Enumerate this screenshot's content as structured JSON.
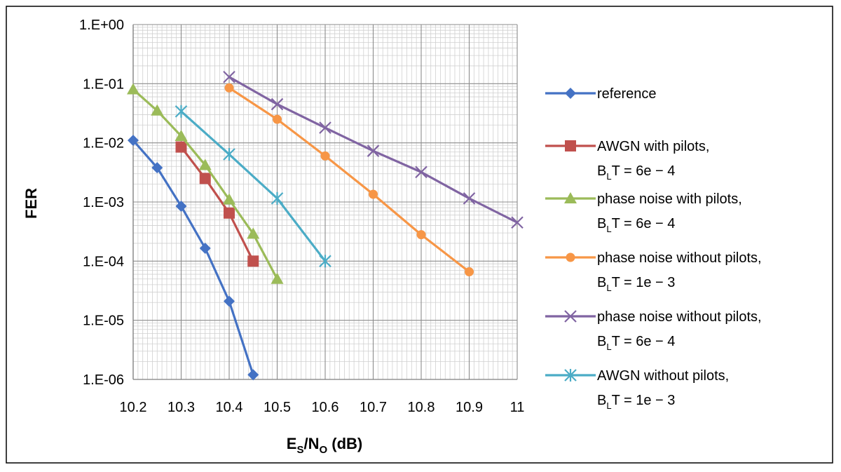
{
  "chart_data": {
    "type": "line",
    "xlabel": {
      "main": "E",
      "sub1": "S",
      "mid": "/N",
      "sub2": "O",
      "tail": " (dB)"
    },
    "ylabel": "FER",
    "x_scale": "linear",
    "y_scale": "log",
    "xlim": [
      10.2,
      11
    ],
    "ylim": [
      1e-06,
      1
    ],
    "x_ticks": [
      {
        "value": 10.2,
        "label": "10.2"
      },
      {
        "value": 10.3,
        "label": "10.3"
      },
      {
        "value": 10.4,
        "label": "10.4"
      },
      {
        "value": 10.5,
        "label": "10.5"
      },
      {
        "value": 10.6,
        "label": "10.6"
      },
      {
        "value": 10.7,
        "label": "10.7"
      },
      {
        "value": 10.8,
        "label": "10.8"
      },
      {
        "value": 10.9,
        "label": "10.9"
      },
      {
        "value": 11.0,
        "label": "11"
      }
    ],
    "y_ticks": [
      {
        "value": 1,
        "label": "1.E+00"
      },
      {
        "value": 0.1,
        "label": "1.E-01"
      },
      {
        "value": 0.01,
        "label": "1.E-02"
      },
      {
        "value": 0.001,
        "label": "1.E-03"
      },
      {
        "value": 0.0001,
        "label": "1.E-04"
      },
      {
        "value": 1e-05,
        "label": "1.E-05"
      },
      {
        "value": 1e-06,
        "label": "1.E-06"
      }
    ],
    "grid": true,
    "legend_position": "right",
    "series": [
      {
        "name": "reference",
        "name_line2": null,
        "color": "#4472C4",
        "marker": "diamond",
        "x": [
          10.2,
          10.25,
          10.3,
          10.35,
          10.4,
          10.45
        ],
        "y": [
          0.011,
          0.0038,
          0.00085,
          0.000165,
          2.1e-05,
          1.2e-06
        ]
      },
      {
        "name": "AWGN with pilots,",
        "name_line2": {
          "pre": "B",
          "sub": "L",
          "post": "T = 6e − 4"
        },
        "color": "#C0504D",
        "marker": "square",
        "x": [
          10.3,
          10.35,
          10.4,
          10.45
        ],
        "y": [
          0.0085,
          0.0025,
          0.00065,
          0.0001
        ]
      },
      {
        "name": "phase noise with pilots,",
        "name_line2": {
          "pre": "B",
          "sub": "L",
          "post": "T = 6e − 4"
        },
        "color": "#9BBB59",
        "marker": "triangle",
        "x": [
          10.2,
          10.25,
          10.3,
          10.35,
          10.4,
          10.45,
          10.5
        ],
        "y": [
          0.08,
          0.035,
          0.013,
          0.0042,
          0.0011,
          0.00029,
          5e-05
        ]
      },
      {
        "name": "phase noise without pilots,",
        "name_line2": {
          "pre": "B",
          "sub": "L",
          "post": "T = 1e − 3"
        },
        "color": "#F79646",
        "marker": "circle",
        "x": [
          10.4,
          10.5,
          10.6,
          10.7,
          10.8,
          10.9
        ],
        "y": [
          0.085,
          0.025,
          0.006,
          0.00135,
          0.00028,
          6.6e-05
        ]
      },
      {
        "name": "phase noise without pilots,",
        "name_line2": {
          "pre": "B",
          "sub": "L",
          "post": "T = 6e − 4"
        },
        "color": "#8064A2",
        "marker": "x",
        "x": [
          10.4,
          10.5,
          10.6,
          10.7,
          10.8,
          10.9,
          11.0
        ],
        "y": [
          0.13,
          0.045,
          0.018,
          0.0073,
          0.0032,
          0.00115,
          0.00045
        ]
      },
      {
        "name": "AWGN without pilots,",
        "name_line2": {
          "pre": "B",
          "sub": "L",
          "post": "T = 1e − 3"
        },
        "color": "#4BACC6",
        "marker": "star",
        "x": [
          10.3,
          10.4,
          10.5,
          10.6
        ],
        "y": [
          0.034,
          0.0064,
          0.00115,
          0.0001
        ]
      }
    ]
  }
}
